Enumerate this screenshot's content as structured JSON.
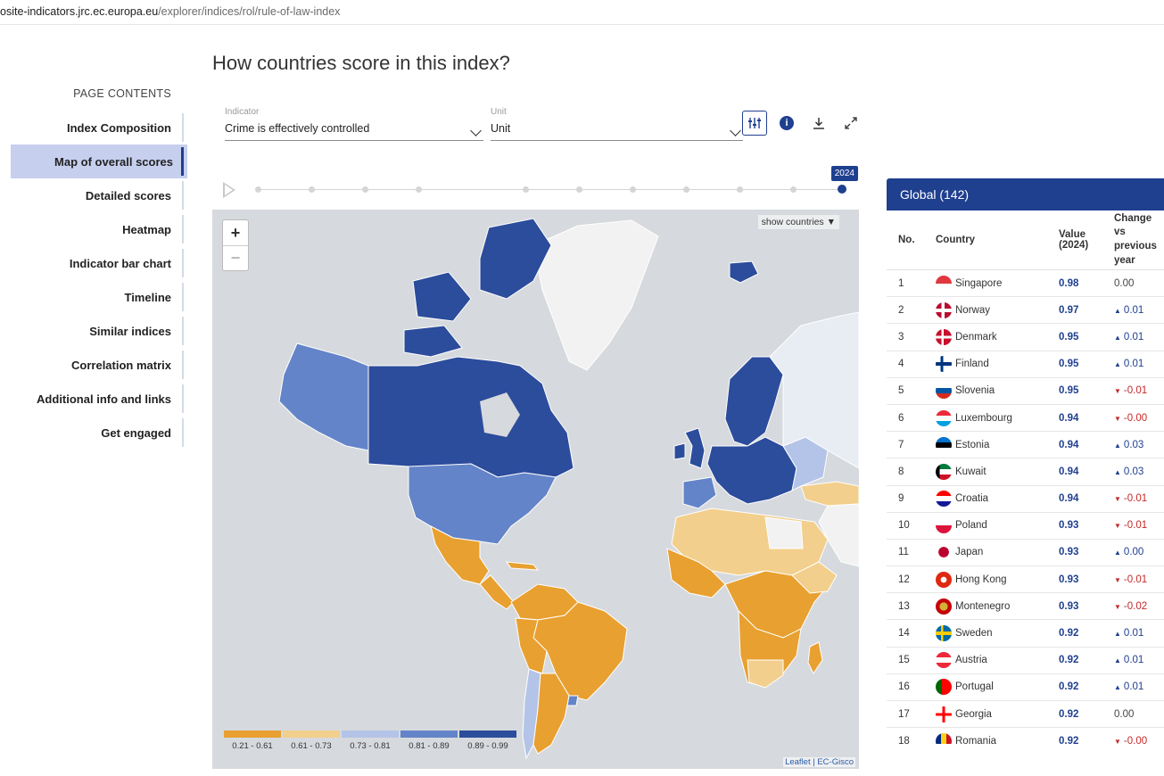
{
  "browser": {
    "url_host": "osite-indicators.jrc.ec.europa.eu",
    "url_path": "/explorer/indices/rol/rule-of-law-index"
  },
  "sidebar": {
    "title": "PAGE CONTENTS",
    "items": [
      {
        "label": "Index Composition",
        "active": false
      },
      {
        "label": "Map of overall scores",
        "active": true
      },
      {
        "label": "Detailed scores",
        "active": false
      },
      {
        "label": "Heatmap",
        "active": false
      },
      {
        "label": "Indicator bar chart",
        "active": false
      },
      {
        "label": "Timeline",
        "active": false
      },
      {
        "label": "Similar indices",
        "active": false
      },
      {
        "label": "Correlation matrix",
        "active": false
      },
      {
        "label": "Additional info and links",
        "active": false
      },
      {
        "label": "Get engaged",
        "active": false
      }
    ]
  },
  "main": {
    "heading": "How countries score in this index?",
    "indicator": {
      "label": "Indicator",
      "value": "Crime is effectively controlled"
    },
    "unit": {
      "label": "Unit",
      "value": "Unit"
    },
    "tools": [
      "sliders-icon",
      "info-icon",
      "download-icon",
      "expand-icon"
    ],
    "timeline_year": "2024",
    "map": {
      "show_countries": "show countries",
      "zoom_in": "+",
      "zoom_out": "−",
      "attribution": "Leaflet | EC-Gisco",
      "legend": [
        {
          "label": "0.21 - 0.61",
          "color": "#e8a030"
        },
        {
          "label": "0.61 - 0.73",
          "color": "#f2cf8c"
        },
        {
          "label": "0.73 - 0.81",
          "color": "#b4c4e8"
        },
        {
          "label": "0.81 - 0.89",
          "color": "#6384c8"
        },
        {
          "label": "0.89 - 0.99",
          "color": "#2c4c9c"
        }
      ]
    }
  },
  "table": {
    "title": "Global (142)",
    "headers": {
      "no": "No.",
      "country": "Country",
      "value": "Value (2024)",
      "change": "Change vs previous year"
    },
    "rows": [
      {
        "no": "1",
        "country": "Singapore",
        "value": "0.98",
        "change": "0.00",
        "dir": "same"
      },
      {
        "no": "2",
        "country": "Norway",
        "value": "0.97",
        "change": "0.01",
        "dir": "up"
      },
      {
        "no": "3",
        "country": "Denmark",
        "value": "0.95",
        "change": "0.01",
        "dir": "up"
      },
      {
        "no": "4",
        "country": "Finland",
        "value": "0.95",
        "change": "0.01",
        "dir": "up"
      },
      {
        "no": "5",
        "country": "Slovenia",
        "value": "0.95",
        "change": "-0.01",
        "dir": "down"
      },
      {
        "no": "6",
        "country": "Luxembourg",
        "value": "0.94",
        "change": "-0.00",
        "dir": "down"
      },
      {
        "no": "7",
        "country": "Estonia",
        "value": "0.94",
        "change": "0.03",
        "dir": "up"
      },
      {
        "no": "8",
        "country": "Kuwait",
        "value": "0.94",
        "change": "0.03",
        "dir": "up"
      },
      {
        "no": "9",
        "country": "Croatia",
        "value": "0.94",
        "change": "-0.01",
        "dir": "down"
      },
      {
        "no": "10",
        "country": "Poland",
        "value": "0.93",
        "change": "-0.01",
        "dir": "down"
      },
      {
        "no": "11",
        "country": "Japan",
        "value": "0.93",
        "change": "0.00",
        "dir": "up"
      },
      {
        "no": "12",
        "country": "Hong Kong",
        "value": "0.93",
        "change": "-0.01",
        "dir": "down"
      },
      {
        "no": "13",
        "country": "Montenegro",
        "value": "0.93",
        "change": "-0.02",
        "dir": "down"
      },
      {
        "no": "14",
        "country": "Sweden",
        "value": "0.92",
        "change": "0.01",
        "dir": "up"
      },
      {
        "no": "15",
        "country": "Austria",
        "value": "0.92",
        "change": "0.01",
        "dir": "up"
      },
      {
        "no": "16",
        "country": "Portugal",
        "value": "0.92",
        "change": "0.01",
        "dir": "up"
      },
      {
        "no": "17",
        "country": "Georgia",
        "value": "0.92",
        "change": "0.00",
        "dir": "same"
      },
      {
        "no": "18",
        "country": "Romania",
        "value": "0.92",
        "change": "-0.00",
        "dir": "down"
      }
    ]
  }
}
